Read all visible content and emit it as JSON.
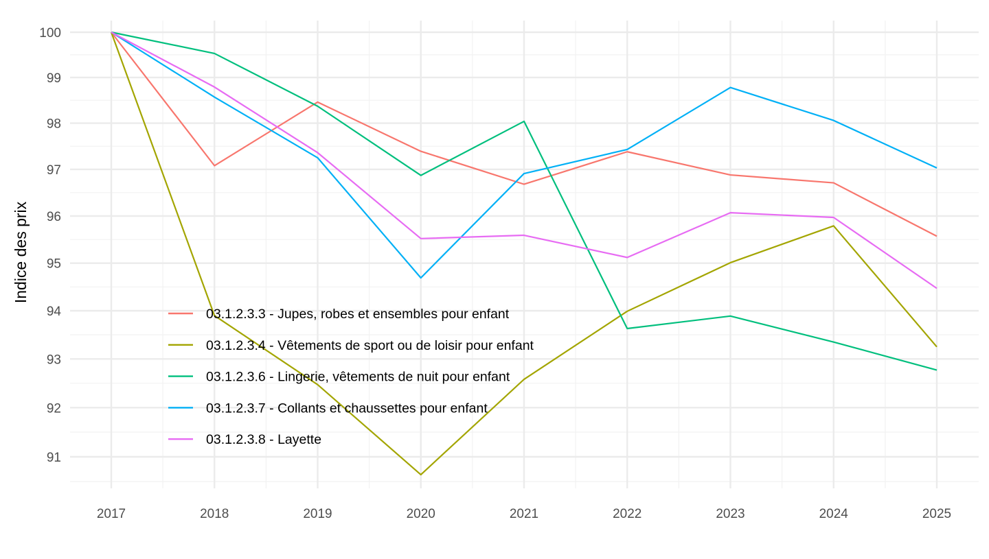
{
  "chart_data": {
    "type": "line",
    "title": "",
    "xlabel": "",
    "ylabel": "Indice des prix",
    "y_scale": "log",
    "ylim": [
      90.4,
      100.1
    ],
    "y_ticks": [
      91,
      92,
      93,
      94,
      95,
      96,
      97,
      98,
      99,
      100
    ],
    "x": [
      2017,
      2018,
      2019,
      2020,
      2021,
      2022,
      2023,
      2024,
      2025
    ],
    "x_ticks": [
      "2017",
      "2018",
      "2019",
      "2020",
      "2021",
      "2022",
      "2023",
      "2024",
      "2025"
    ],
    "grid": true,
    "legend_position": "inside-bottom-left",
    "series": [
      {
        "name": "03.1.2.3.3 - Jupes, robes et ensembles pour enfant",
        "color": "#F8766D",
        "values": [
          100,
          97.08,
          98.46,
          97.39,
          96.68,
          97.38,
          96.88,
          96.71,
          95.57
        ]
      },
      {
        "name": "03.1.2.3.4 - Vêtements de sport ou de loisir pour enfant",
        "color": "#A3A500",
        "values": [
          100,
          93.9,
          92.47,
          90.64,
          92.58,
          93.99,
          95.01,
          95.79,
          93.25
        ]
      },
      {
        "name": "03.1.2.3.6 - Lingerie, vêtements de nuit pour enfant",
        "color": "#00BF7D",
        "values": [
          100,
          99.53,
          98.37,
          96.87,
          98.04,
          93.63,
          93.89,
          93.35,
          92.77
        ]
      },
      {
        "name": "03.1.2.3.7 - Collants et chaussettes pour enfant",
        "color": "#00B0F6",
        "values": [
          100,
          98.57,
          97.25,
          94.69,
          96.91,
          97.43,
          98.78,
          98.06,
          97.03
        ]
      },
      {
        "name": "03.1.2.3.8 - Layette",
        "color": "#E76BF3",
        "values": [
          100,
          98.79,
          97.36,
          95.52,
          95.59,
          95.12,
          96.07,
          95.97,
          94.47
        ]
      }
    ]
  }
}
